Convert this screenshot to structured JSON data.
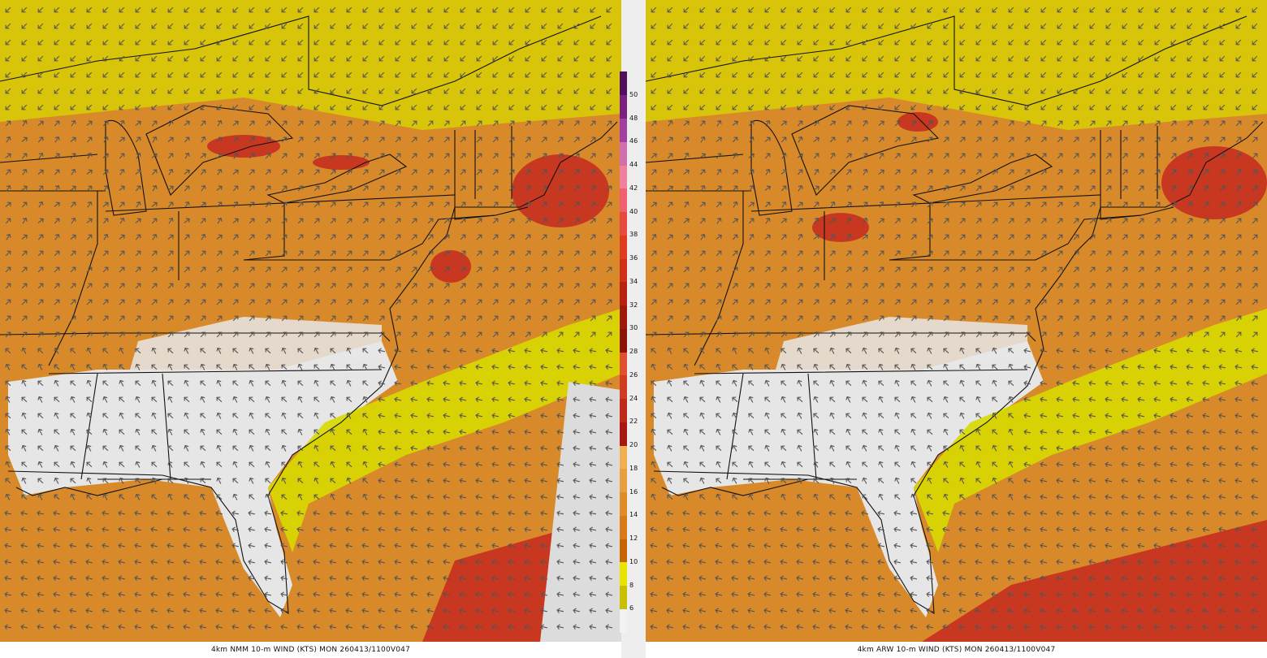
{
  "panels": [
    {
      "id": "nmm",
      "caption": "4km NMM 10-m WIND (KTS) MON 260413/1100V047"
    },
    {
      "id": "arw",
      "caption": "4km ARW 10-m WIND (KTS) MON 260413/1100V047"
    }
  ],
  "colorbar": {
    "units": "KTS",
    "labels": [
      "6",
      "8",
      "10",
      "12",
      "14",
      "16",
      "18",
      "20",
      "22",
      "24",
      "26",
      "28",
      "30",
      "32",
      "34",
      "36",
      "38",
      "40",
      "42",
      "44",
      "46",
      "48",
      "50"
    ],
    "colors": [
      "#f2f2f2",
      "#c8c000",
      "#e8e400",
      "#c86400",
      "#d87a18",
      "#e08c28",
      "#e8a03c",
      "#f0b050",
      "#a81810",
      "#c02818",
      "#d03c20",
      "#e05030",
      "#8a1408",
      "#a01a0a",
      "#b82010",
      "#d03018",
      "#e03a20",
      "#e84a40",
      "#f06070",
      "#f080a0",
      "#d070b0",
      "#a040a0",
      "#7a2080",
      "#50105c"
    ]
  },
  "legend_colors": {
    "calm": "#e6e6e6",
    "light": "#d8d800",
    "moderate": "#d88a2a",
    "strong": "#c83820",
    "arrow": "#555555",
    "borders": "#111111"
  }
}
